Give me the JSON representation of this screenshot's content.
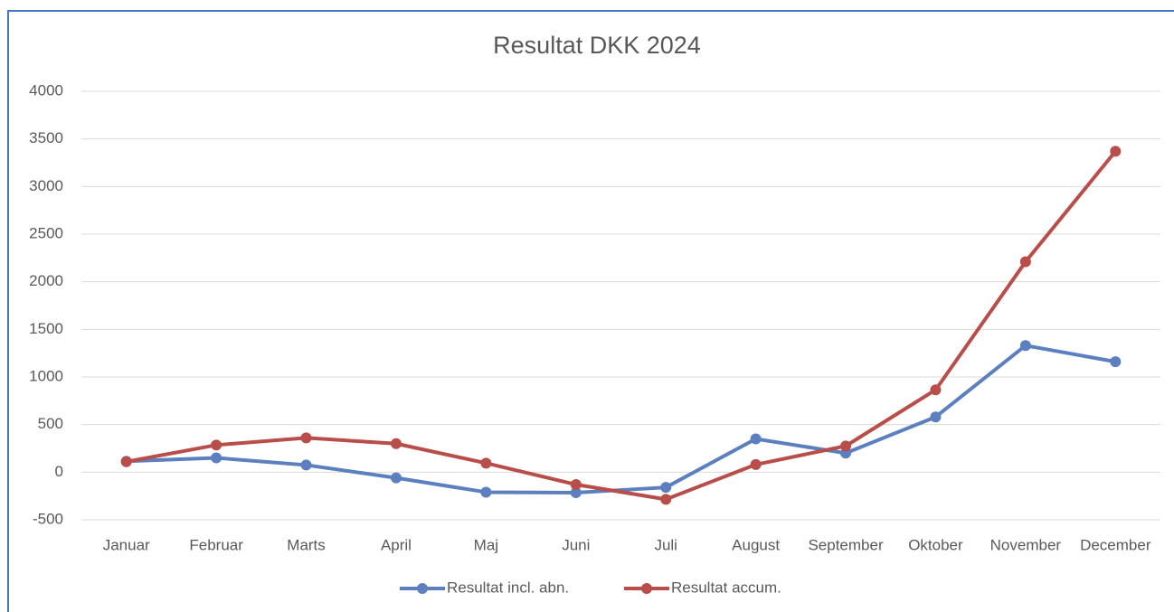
{
  "chart_data": {
    "type": "line",
    "title": "Resultat DKK 2024",
    "categories": [
      "Januar",
      "Februar",
      "Marts",
      "April",
      "Maj",
      "Juni",
      "Juli",
      "August",
      "September",
      "Oktober",
      "November",
      "December"
    ],
    "series": [
      {
        "name": "Resultat incl. abn.",
        "color": "#5b7fbf",
        "values": [
          115,
          150,
          75,
          -60,
          -210,
          -215,
          -160,
          350,
          200,
          580,
          1330,
          1160
        ]
      },
      {
        "name": "Resultat accum.",
        "color": "#b94d4a",
        "values": [
          110,
          285,
          360,
          300,
          95,
          -130,
          -285,
          80,
          275,
          865,
          2210,
          3370
        ]
      }
    ],
    "ylim": [
      -500,
      4000
    ],
    "yticks": [
      -500,
      0,
      500,
      1000,
      1500,
      2000,
      2500,
      3000,
      3500,
      4000
    ],
    "grid": true
  }
}
